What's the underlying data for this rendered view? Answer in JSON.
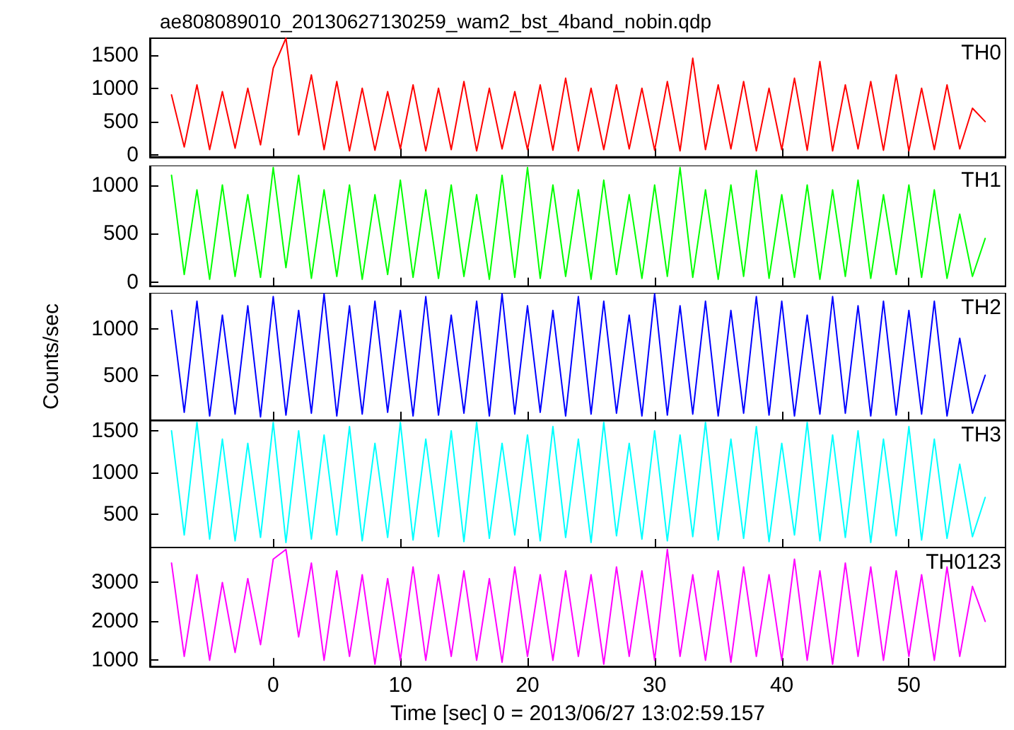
{
  "chart_data": [
    {
      "type": "line",
      "title": "ae808089010_20130627130259_wam2_bst_4band_nobin.qdp",
      "legend": "top right",
      "tick_labels": "y",
      "x": [
        -8,
        -7,
        -6,
        -5,
        -4,
        -3,
        -2,
        -1,
        0,
        1,
        2,
        3,
        4,
        5,
        6,
        7,
        8,
        9,
        10,
        11,
        12,
        13,
        14,
        15,
        16,
        17,
        18,
        19,
        20,
        21,
        22,
        23,
        24,
        25,
        26,
        27,
        28,
        29,
        30,
        31,
        32,
        33,
        34,
        35,
        36,
        37,
        38,
        39,
        40,
        41,
        42,
        43,
        44,
        45,
        46,
        47,
        48,
        49,
        50,
        51,
        52,
        53,
        54,
        55,
        56
      ],
      "series": [
        {
          "name": "TH0",
          "color": "#ff0000",
          "values": [
            900,
            120,
            1050,
            80,
            950,
            100,
            1000,
            150,
            1300,
            1750,
            300,
            1200,
            80,
            1100,
            60,
            1000,
            70,
            950,
            90,
            1050,
            60,
            1000,
            80,
            1100,
            60,
            1000,
            90,
            950,
            80,
            1050,
            70,
            1150,
            60,
            1000,
            80,
            1050,
            90,
            1000,
            70,
            1100,
            60,
            1450,
            80,
            1050,
            90,
            1100,
            60,
            1000,
            80,
            1150,
            70,
            1400,
            60,
            1050,
            90,
            1100,
            70,
            1200,
            60,
            1000,
            80,
            1050,
            90,
            700,
            500
          ]
        }
      ],
      "xlim": [
        -9.7,
        57.6
      ],
      "xticks": [
        0,
        10,
        20,
        30,
        40,
        50
      ],
      "ylim": [
        -30,
        1750
      ],
      "yticks": [
        0,
        500,
        1000,
        1500
      ]
    },
    {
      "type": "line",
      "legend": "top right",
      "tick_labels": "y",
      "x": [
        -8,
        -7,
        -6,
        -5,
        -4,
        -3,
        -2,
        -1,
        0,
        1,
        2,
        3,
        4,
        5,
        6,
        7,
        8,
        9,
        10,
        11,
        12,
        13,
        14,
        15,
        16,
        17,
        18,
        19,
        20,
        21,
        22,
        23,
        24,
        25,
        26,
        27,
        28,
        29,
        30,
        31,
        32,
        33,
        34,
        35,
        36,
        37,
        38,
        39,
        40,
        41,
        42,
        43,
        44,
        45,
        46,
        47,
        48,
        49,
        50,
        51,
        52,
        53,
        54,
        55,
        56
      ],
      "series": [
        {
          "name": "TH1",
          "color": "#00ff00",
          "values": [
            1100,
            80,
            950,
            30,
            1000,
            60,
            900,
            50,
            1180,
            150,
            1100,
            40,
            950,
            60,
            1000,
            30,
            900,
            80,
            1050,
            50,
            950,
            40,
            1000,
            60,
            900,
            30,
            1100,
            50,
            1180,
            40,
            1000,
            60,
            950,
            30,
            1050,
            80,
            900,
            40,
            1000,
            60,
            1180,
            50,
            950,
            30,
            1000,
            60,
            1150,
            40,
            900,
            50,
            1000,
            30,
            950,
            60,
            1050,
            40,
            900,
            80,
            1000,
            50,
            950,
            40,
            700,
            60,
            450
          ]
        }
      ],
      "xlim": [
        -9.7,
        57.6
      ],
      "xticks": [
        0,
        10,
        20,
        30,
        40,
        50
      ],
      "ylim": [
        -40,
        1200
      ],
      "yticks": [
        0,
        500,
        1000
      ]
    },
    {
      "type": "line",
      "legend": "top right",
      "tick_labels": "y",
      "ylabel": "Counts/sec",
      "x": [
        -8,
        -7,
        -6,
        -5,
        -4,
        -3,
        -2,
        -1,
        0,
        1,
        2,
        3,
        4,
        5,
        6,
        7,
        8,
        9,
        10,
        11,
        12,
        13,
        14,
        15,
        16,
        17,
        18,
        19,
        20,
        21,
        22,
        23,
        24,
        25,
        26,
        27,
        28,
        29,
        30,
        31,
        32,
        33,
        34,
        35,
        36,
        37,
        38,
        39,
        40,
        41,
        42,
        43,
        44,
        45,
        46,
        47,
        48,
        49,
        50,
        51,
        52,
        53,
        54,
        55,
        56
      ],
      "series": [
        {
          "name": "TH2",
          "color": "#0000ff",
          "values": [
            1200,
            100,
            1300,
            60,
            1150,
            80,
            1250,
            50,
            1350,
            70,
            1200,
            90,
            1380,
            60,
            1250,
            80,
            1300,
            100,
            1200,
            60,
            1350,
            70,
            1150,
            90,
            1300,
            60,
            1380,
            80,
            1250,
            100,
            1200,
            60,
            1350,
            80,
            1300,
            90,
            1150,
            60,
            1380,
            70,
            1250,
            80,
            1300,
            60,
            1200,
            90,
            1350,
            70,
            1300,
            60,
            1150,
            80,
            1350,
            90,
            1250,
            60,
            1300,
            70,
            1200,
            80,
            1300,
            60,
            900,
            90,
            500
          ]
        }
      ],
      "xlim": [
        -9.7,
        57.6
      ],
      "xticks": [
        0,
        10,
        20,
        30,
        40,
        50
      ],
      "ylim": [
        15,
        1390
      ],
      "yticks": [
        500,
        1000
      ]
    },
    {
      "type": "line",
      "legend": "top right",
      "tick_labels": "y",
      "x": [
        -8,
        -7,
        -6,
        -5,
        -4,
        -3,
        -2,
        -1,
        0,
        1,
        2,
        3,
        4,
        5,
        6,
        7,
        8,
        9,
        10,
        11,
        12,
        13,
        14,
        15,
        16,
        17,
        18,
        19,
        20,
        21,
        22,
        23,
        24,
        25,
        26,
        27,
        28,
        29,
        30,
        31,
        32,
        33,
        34,
        35,
        36,
        37,
        38,
        39,
        40,
        41,
        42,
        43,
        44,
        45,
        46,
        47,
        48,
        49,
        50,
        51,
        52,
        53,
        54,
        55,
        56
      ],
      "series": [
        {
          "name": "TH3",
          "color": "#00ffff",
          "values": [
            1500,
            250,
            1600,
            200,
            1400,
            180,
            1350,
            220,
            1600,
            160,
            1500,
            200,
            1450,
            250,
            1550,
            180,
            1350,
            220,
            1600,
            190,
            1400,
            230,
            1500,
            170,
            1600,
            210,
            1350,
            250,
            1450,
            180,
            1550,
            220,
            1400,
            160,
            1600,
            240,
            1350,
            200,
            1500,
            180,
            1450,
            230,
            1600,
            190,
            1400,
            210,
            1550,
            170,
            1350,
            250,
            1600,
            180,
            1450,
            220,
            1500,
            160,
            1400,
            240,
            1550,
            190,
            1400,
            210,
            1100,
            230,
            700
          ]
        }
      ],
      "xlim": [
        -9.7,
        57.6
      ],
      "xticks": [
        0,
        10,
        20,
        30,
        40,
        50
      ],
      "ylim": [
        100,
        1620
      ],
      "yticks": [
        500,
        1000,
        1500
      ]
    },
    {
      "type": "line",
      "legend": "top right",
      "xlabel": "Time [sec] 0 = 2013/06/27 13:02:59.157",
      "x": [
        -8,
        -7,
        -6,
        -5,
        -4,
        -3,
        -2,
        -1,
        0,
        1,
        2,
        3,
        4,
        5,
        6,
        7,
        8,
        9,
        10,
        11,
        12,
        13,
        14,
        15,
        16,
        17,
        18,
        19,
        20,
        21,
        22,
        23,
        24,
        25,
        26,
        27,
        28,
        29,
        30,
        31,
        32,
        33,
        34,
        35,
        36,
        37,
        38,
        39,
        40,
        41,
        42,
        43,
        44,
        45,
        46,
        47,
        48,
        49,
        50,
        51,
        52,
        53,
        54,
        55,
        56
      ],
      "series": [
        {
          "name": "TH0123",
          "color": "#ff00ff",
          "values": [
            3500,
            1100,
            3200,
            1000,
            3000,
            1200,
            3100,
            1400,
            3600,
            3850,
            1600,
            3500,
            1000,
            3300,
            1100,
            3200,
            900,
            3100,
            1000,
            3400,
            1000,
            3200,
            1100,
            3300,
            1000,
            3100,
            950,
            3400,
            1100,
            3200,
            1000,
            3300,
            1100,
            3200,
            900,
            3400,
            1100,
            3300,
            1000,
            3850,
            1100,
            3200,
            1000,
            3300,
            950,
            3400,
            1100,
            3200,
            1000,
            3600,
            1000,
            3300,
            900,
            3500,
            1100,
            3400,
            1000,
            3300,
            1100,
            3200,
            1000,
            3400,
            1100,
            2900,
            2000
          ]
        }
      ],
      "xlim": [
        -9.7,
        57.6
      ],
      "xticks": [
        0,
        10,
        20,
        30,
        40,
        50
      ],
      "ylim": [
        840,
        3900
      ],
      "yticks": [
        1000,
        2000,
        3000
      ]
    }
  ]
}
